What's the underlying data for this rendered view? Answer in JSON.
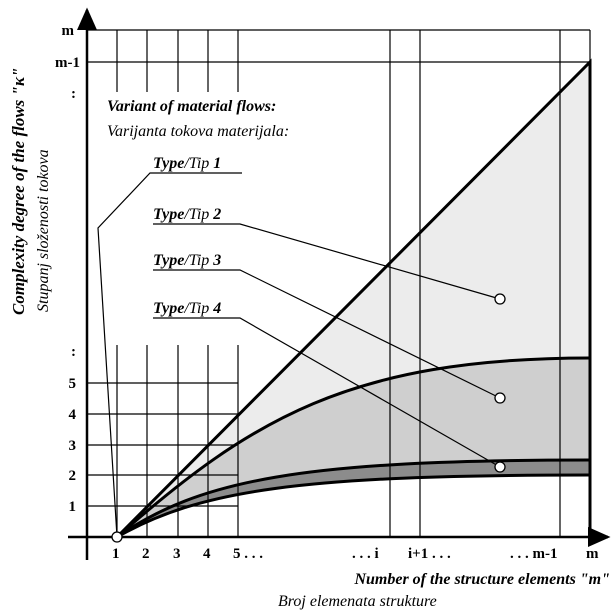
{
  "y_axis": {
    "title": "Complexity degree of the flows \"κ\"",
    "subtitle": "Stupanj složenosti tokova",
    "top_ticks": [
      "m",
      "m-1",
      ":"
    ],
    "bottom_ticks": [
      ":",
      "5",
      "4",
      "3",
      "2",
      "1"
    ]
  },
  "x_axis": {
    "title": "Number of the structure elements \"m\"",
    "subtitle": "Broj elemenata strukture",
    "ticks": [
      "1",
      "2",
      "3",
      "4",
      "5 . . .",
      ". . . i",
      "i+1 . . .",
      ". . . m-1",
      "m"
    ]
  },
  "legend": {
    "title": "Variant of material flows:",
    "subtitle": "Varijanta tokova materijala:",
    "types": [
      {
        "en": "Type",
        "hr": "/Tip",
        "number": "1"
      },
      {
        "en": "Type",
        "hr": "/Tip",
        "number": "2"
      },
      {
        "en": "Type",
        "hr": "/Tip",
        "number": "3"
      },
      {
        "en": "Type",
        "hr": "/Tip",
        "number": "4"
      }
    ]
  }
}
